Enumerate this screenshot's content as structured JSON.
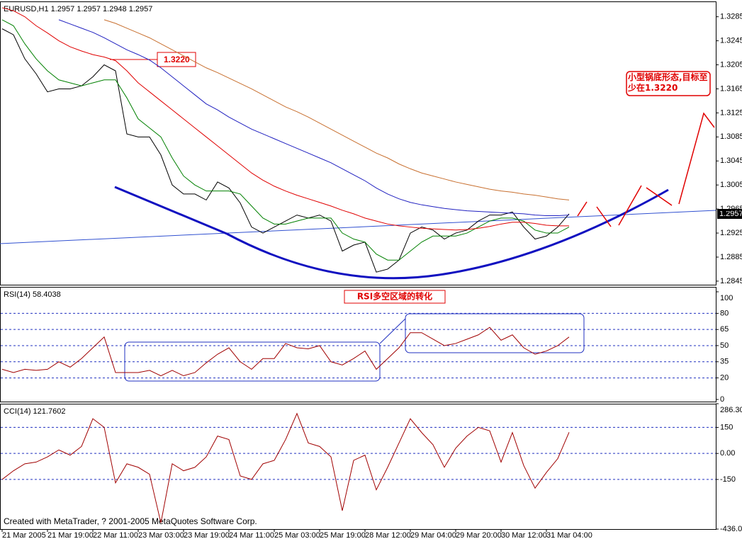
{
  "footer": "Created with MetaTrader, ? 2001-2005 MetaQuotes Software Corp.",
  "chart_data": [
    {
      "type": "line",
      "title": "EURUSD,H1  1.2957 1.2957 1.2948 1.2957",
      "annotations": [
        "1.3220",
        "小型锅底形态,目标至少在1.3220",
        "1.2957"
      ],
      "categories": [
        "21 Mar 2005",
        null,
        null,
        null,
        "21 Mar 19:00",
        null,
        null,
        null,
        "22 Mar 11:00",
        null,
        null,
        null,
        "23 Mar 03:00",
        null,
        null,
        null,
        "23 Mar 19:00",
        null,
        null,
        null,
        "24 Mar 11:00",
        null,
        null,
        null,
        "25 Mar 03:00",
        null,
        null,
        null,
        "25 Mar 19:00",
        null,
        null,
        null,
        "28 Mar 12:00",
        null,
        null,
        null,
        "29 Mar 04:00",
        null,
        null,
        null,
        "29 Mar 20:00",
        null,
        null,
        null,
        "30 Mar 12:00",
        null,
        null,
        null,
        "31 Mar 04:00",
        null,
        null
      ],
      "ylim": [
        1.2839,
        1.3307
      ],
      "yticks": [
        1.3285,
        1.3245,
        1.3205,
        1.3165,
        1.3125,
        1.3085,
        1.3045,
        1.3005,
        1.2965,
        1.2925,
        1.2885,
        1.2845
      ],
      "grid": false,
      "series": [
        {
          "color": "#000000",
          "values": [
            1.3265,
            1.3255,
            1.3215,
            1.319,
            1.316,
            1.3165,
            1.3165,
            1.317,
            1.3185,
            1.3205,
            1.3195,
            1.309,
            1.3085,
            1.3085,
            1.3055,
            1.3005,
            1.299,
            1.299,
            1.298,
            1.301,
            1.3,
            1.2975,
            1.2935,
            1.2925,
            1.2935,
            1.2945,
            1.2955,
            1.295,
            1.2955,
            1.2945,
            1.2895,
            1.2905,
            1.291,
            1.286,
            1.2865,
            1.288,
            1.2925,
            1.2935,
            1.293,
            1.2915,
            1.2925,
            1.293,
            1.2945,
            1.2955,
            1.2955,
            1.296,
            1.2935,
            1.2915,
            1.292,
            1.2935,
            1.2957
          ]
        },
        {
          "color": "#008000",
          "values": [
            1.328,
            1.327,
            1.324,
            1.3215,
            1.3195,
            1.318,
            1.3175,
            1.317,
            1.3175,
            1.318,
            1.318,
            1.315,
            1.3115,
            1.31,
            1.3085,
            1.305,
            1.302,
            1.3005,
            1.2995,
            1.2995,
            1.2995,
            1.299,
            1.297,
            1.295,
            1.294,
            1.294,
            1.2945,
            1.295,
            1.295,
            1.295,
            1.2925,
            1.2915,
            1.291,
            1.289,
            1.288,
            1.288,
            1.2895,
            1.291,
            1.292,
            1.292,
            1.292,
            1.2925,
            1.2935,
            1.2945,
            1.295,
            1.295,
            1.2945,
            1.293,
            1.2925,
            1.2925,
            1.2935
          ]
        },
        {
          "color": "#e00000",
          "values": [
            1.33,
            1.3295,
            1.3285,
            1.327,
            1.3258,
            1.3245,
            1.3235,
            1.3228,
            1.3222,
            1.3218,
            1.3212,
            1.3195,
            1.3175,
            1.316,
            1.3145,
            1.313,
            1.3115,
            1.31,
            1.3085,
            1.307,
            1.3055,
            1.304,
            1.3025,
            1.3013,
            1.3003,
            1.2995,
            1.2988,
            1.2982,
            1.2976,
            1.297,
            1.2963,
            1.2957,
            1.295,
            1.2945,
            1.294,
            1.2937,
            1.2935,
            1.2933,
            1.2932,
            1.2931,
            1.293,
            1.2931,
            1.2933,
            1.2936,
            1.294,
            1.2943,
            1.2943,
            1.2941,
            1.2938,
            1.2937,
            1.2937
          ]
        },
        {
          "color": "#2020c0",
          "values": [
            null,
            null,
            null,
            null,
            null,
            1.328,
            1.3273,
            1.3266,
            1.3259,
            1.325,
            1.324,
            1.323,
            1.3222,
            1.3213,
            1.32,
            1.3185,
            1.317,
            1.3155,
            1.314,
            1.313,
            1.3118,
            1.3108,
            1.3098,
            1.309,
            1.3082,
            1.3074,
            1.3066,
            1.3058,
            1.305,
            1.3042,
            1.3032,
            1.3022,
            1.3012,
            1.3,
            1.299,
            1.2982,
            1.2976,
            1.2972,
            1.2969,
            1.2966,
            1.2964,
            1.2962,
            1.2961,
            1.296,
            1.2959,
            1.2958,
            1.2957,
            1.2955,
            1.2954,
            1.2954,
            1.2955
          ]
        },
        {
          "color": "#c87030",
          "values": [
            null,
            null,
            null,
            null,
            null,
            null,
            null,
            null,
            null,
            1.328,
            1.3274,
            1.3266,
            1.3258,
            1.325,
            1.324,
            1.323,
            1.322,
            1.321,
            1.32,
            1.3192,
            1.3183,
            1.3174,
            1.3165,
            1.3155,
            1.3145,
            1.3135,
            1.3127,
            1.3118,
            1.3108,
            1.3098,
            1.3088,
            1.3078,
            1.3068,
            1.3058,
            1.305,
            1.304,
            1.3032,
            1.3025,
            1.302,
            1.3015,
            1.301,
            1.3006,
            1.3002,
            1.2998,
            1.2995,
            1.2993,
            1.299,
            1.2988,
            1.2985,
            1.2982,
            1.298
          ]
        }
      ]
    },
    {
      "type": "line",
      "title": "RSI(14) 58.4038",
      "annotations": [
        "RSI多空区域的转化"
      ],
      "ylim": [
        -2,
        104.6
      ],
      "yticks": [
        100,
        80,
        65,
        50,
        35,
        20,
        0
      ],
      "grid": true,
      "series": [
        {
          "color": "#a00000",
          "values": [
            28,
            25,
            28,
            27,
            28,
            35,
            30,
            38,
            48,
            58,
            25,
            25,
            25,
            27,
            22,
            27,
            22,
            25,
            34,
            42,
            48,
            35,
            28,
            38,
            38,
            52,
            48,
            47,
            50,
            35,
            32,
            38,
            45,
            28,
            38,
            48,
            62,
            62,
            56,
            50,
            52,
            56,
            60,
            67,
            55,
            60,
            48,
            42,
            45,
            50,
            58
          ]
        }
      ]
    },
    {
      "type": "line",
      "title": "CCI(14) 121.7602",
      "ylim": [
        -436.0,
        286.3
      ],
      "yticks": [
        {
          "value": 286.3,
          "label": "286.30"
        },
        150,
        {
          "value": 0,
          "label": "0.00"
        },
        -150,
        {
          "value": -436.0,
          "label": "-436.0"
        }
      ],
      "grid": true,
      "series": [
        {
          "color": "#a00000",
          "values": [
            -150,
            -100,
            -60,
            -50,
            -20,
            20,
            -10,
            40,
            200,
            150,
            -170,
            -60,
            -80,
            -120,
            -400,
            -60,
            -100,
            -80,
            -20,
            100,
            80,
            -130,
            -150,
            -60,
            -40,
            80,
            230,
            60,
            40,
            -20,
            -330,
            -40,
            -10,
            -210,
            -80,
            60,
            200,
            120,
            50,
            -80,
            30,
            100,
            150,
            130,
            -50,
            120,
            -70,
            -200,
            -110,
            -30,
            122
          ]
        }
      ]
    }
  ]
}
